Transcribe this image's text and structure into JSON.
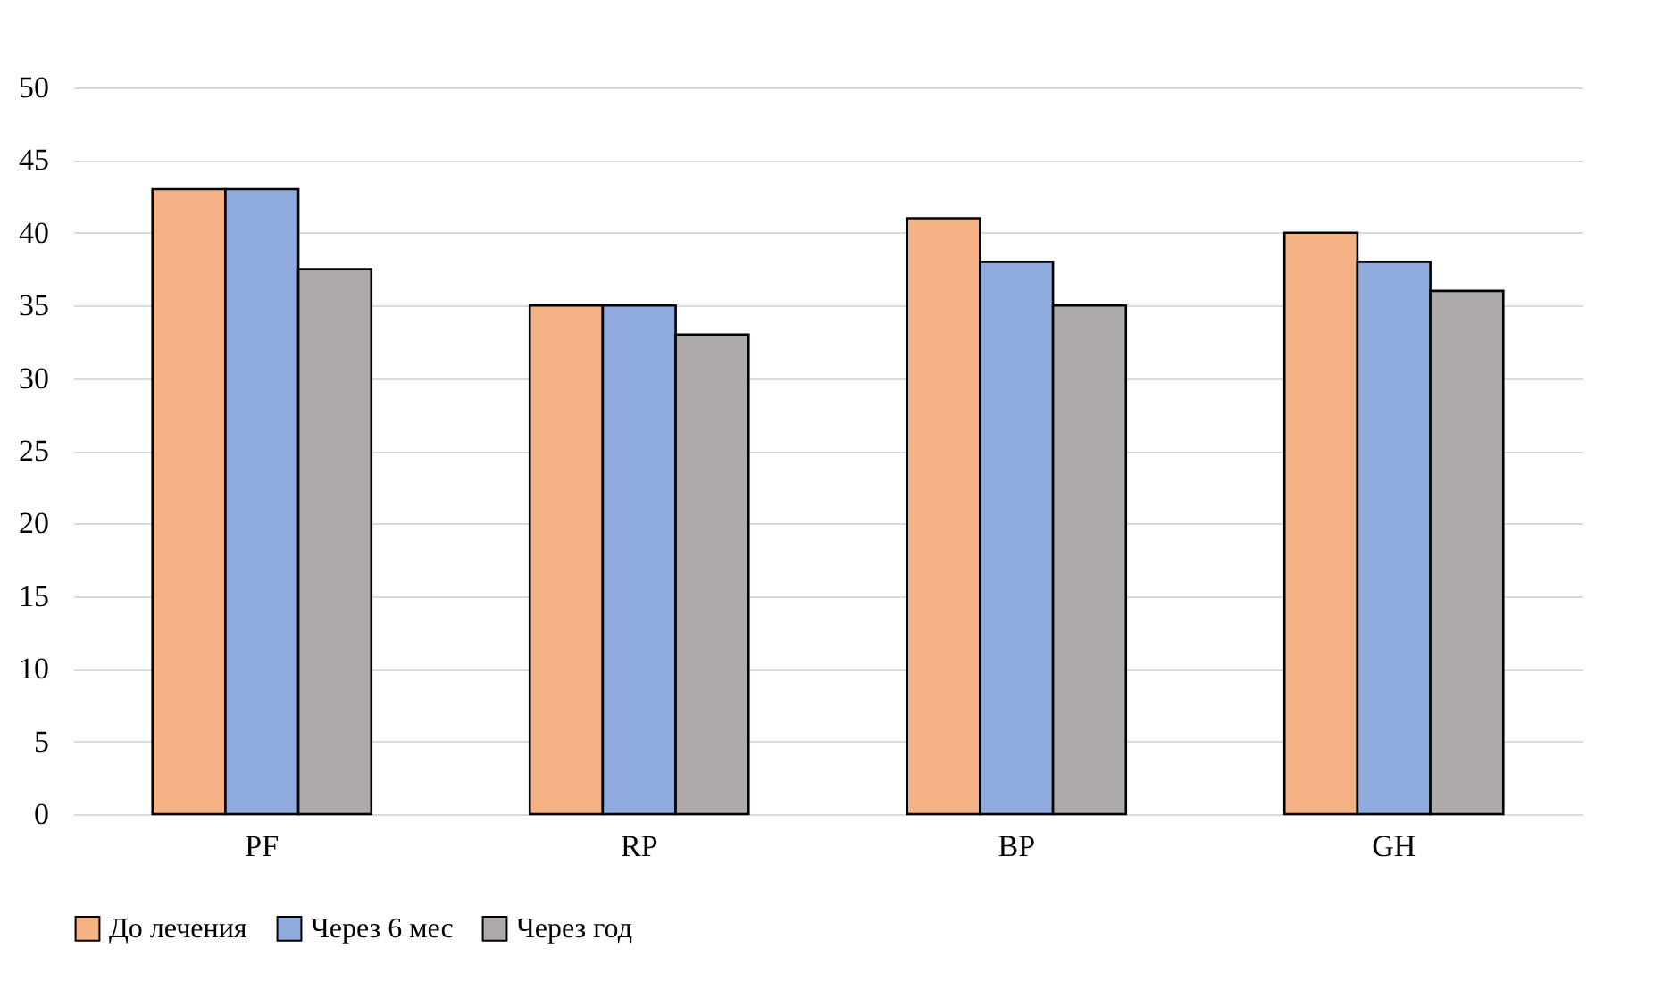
{
  "chart_data": {
    "type": "bar",
    "categories": [
      "PF",
      "RP",
      "BP",
      "GH"
    ],
    "series": [
      {
        "name": "До лечения",
        "color": "#f4b183",
        "values": [
          43,
          35,
          41,
          40
        ]
      },
      {
        "name": "Через 6 мес",
        "color": "#8faadc",
        "values": [
          43,
          35,
          38,
          38
        ]
      },
      {
        "name": "Через год",
        "color": "#aeaaaa",
        "values": [
          37.5,
          33,
          35,
          36
        ]
      }
    ],
    "ylim": [
      0,
      50
    ],
    "yticks": [
      0,
      5,
      10,
      15,
      20,
      25,
      30,
      35,
      40,
      45,
      50
    ],
    "grid": "y",
    "legend": "bottom"
  }
}
